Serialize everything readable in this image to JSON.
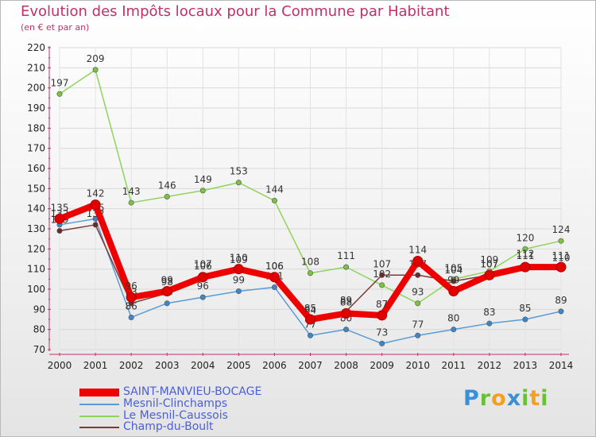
{
  "header": {
    "title": "Evolution des Impôts locaux pour la Commune par Habitant",
    "subtitle": "(en € et par an)"
  },
  "chart_data": {
    "type": "line",
    "title": "Evolution des Impôts locaux pour la Commune par Habitant",
    "ylabel": "(en € et par an)",
    "xlabel": "",
    "ylim": [
      70,
      220
    ],
    "yticks": [
      70,
      80,
      90,
      100,
      110,
      120,
      130,
      140,
      150,
      160,
      170,
      180,
      190,
      200,
      210,
      220
    ],
    "categories": [
      "2000",
      "2001",
      "2002",
      "2003",
      "2004",
      "2005",
      "2006",
      "2007",
      "2008",
      "2009",
      "2010",
      "2011",
      "2012",
      "2013",
      "2014"
    ],
    "grid": true,
    "series": [
      {
        "name": "Le Mesnil-Caussois",
        "color": "#8fd45a",
        "point_color": "#7cc242",
        "values": [
          197,
          209,
          143,
          146,
          149,
          153,
          144,
          108,
          111,
          102,
          93,
          105,
          109,
          120,
          124
        ]
      },
      {
        "name": "Mesnil-Clinchamps",
        "color": "#5b9bd5",
        "point_color": "#3f86c9",
        "values": [
          132,
          135,
          86,
          93,
          96,
          99,
          101,
          77,
          80,
          73,
          77,
          80,
          83,
          85,
          89
        ]
      },
      {
        "name": "Champ-du-Boult",
        "color": "#7a3a3a",
        "point_color": "#6b2a2a",
        "values": [
          129,
          132,
          93,
          98,
          107,
          109,
          106,
          84,
          89,
          107,
          107,
          104,
          107,
          112,
          110
        ]
      },
      {
        "name": "SAINT-MANVIEU-BOCAGE",
        "color": "#ee0000",
        "point_color": "#e00000",
        "values": [
          135,
          142,
          96,
          99,
          106,
          110,
          106,
          85,
          88,
          87,
          114,
          99,
          107,
          111,
          111
        ]
      }
    ],
    "legend_order": [
      "SAINT-MANVIEU-BOCAGE",
      "Mesnil-Clinchamps",
      "Le Mesnil-Caussois",
      "Champ-du-Boult"
    ],
    "legend_position": "bottom-left"
  },
  "logo": {
    "letters": [
      "P",
      "r",
      "o",
      "x",
      "i",
      "t",
      "i"
    ],
    "colors": [
      "#3b8fd8",
      "#6abf3a",
      "#f2a020",
      "#3b8fd8",
      "#6abf3a",
      "#f2a020",
      "#6abf3a"
    ]
  }
}
